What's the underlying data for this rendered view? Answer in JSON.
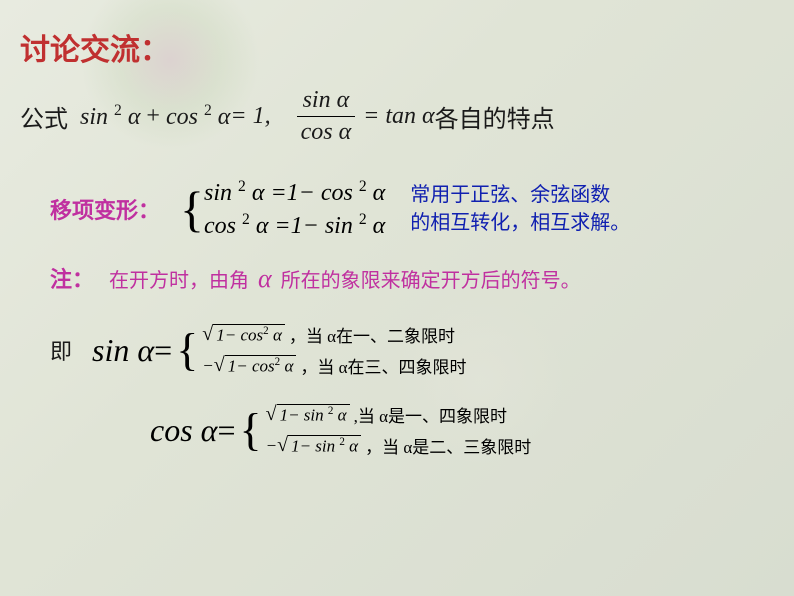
{
  "colors": {
    "title": "#c03030",
    "pink": "#c030a0",
    "blue": "#1020b0",
    "text": "#1a1a1a",
    "bg_start": "#e8ebe0",
    "bg_end": "#d8ddd0"
  },
  "fonts": {
    "title_size": 30,
    "body_size": 24,
    "note_size": 20,
    "case_size": 17,
    "bigmath_size": 32
  },
  "title": "讨论交流：",
  "formula": {
    "prefix": "公式",
    "lhs1": "sin",
    "lhs2": "cos",
    "sup": "2",
    "var": "α",
    "eq1": " = 1,",
    "frac_num": "sin  α",
    "frac_den": "cos  α",
    "eq2": " =  tan  α",
    "suffix": "各自的特点"
  },
  "transform": {
    "label": "移项变形：",
    "line1_lhs": "sin",
    "line1_rhs": " =1− cos",
    "line2_lhs": "cos",
    "line2_rhs": " =1− sin",
    "sup": "2",
    "var": "α",
    "note1": "常用于正弦、余弦函数",
    "note2": "的相互转化，相互求解。"
  },
  "note": {
    "label": "注：",
    "text1": "在开方时，由角",
    "var": "α",
    "text2": "所在的象限来确定开方后的符号。"
  },
  "sin_result": {
    "label": "即",
    "func": "sin",
    "var": "α",
    "eq": " = ",
    "case1_expr": "1− cos",
    "case1_sup": "2",
    "case1_var": "α",
    "case1_cond": "，当 α在一、二象限时",
    "case2_neg": "−",
    "case2_expr": "1− cos",
    "case2_cond": "，当 α在三、四象限时"
  },
  "cos_result": {
    "func": "cos",
    "var": "α",
    "eq": " = ",
    "case1_expr": "1− sin",
    "case1_sup": "2",
    "case1_var": "α",
    "case1_cond": " ,当 α是一、四象限时",
    "case2_neg": "−",
    "case2_expr": "1− sin",
    "case2_cond": "，当 α是二、三象限时"
  }
}
